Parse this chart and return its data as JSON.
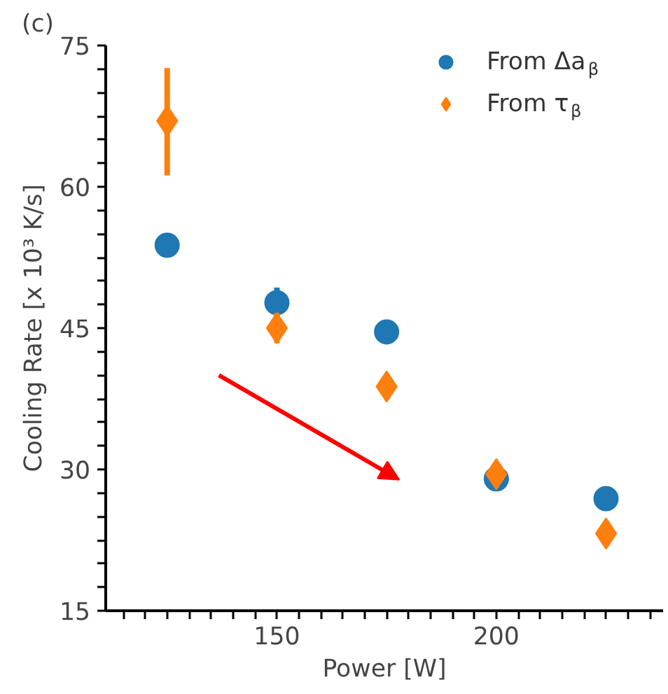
{
  "chart_data": {
    "type": "scatter",
    "title": "(c)",
    "xlabel": "Power [W]",
    "ylabel": "Cooling Rate [x 10³ K/s]",
    "x": [
      125,
      150,
      175,
      200,
      225
    ],
    "series": [
      {
        "name": "From Δa$_{β}$",
        "color": "#1f77b4",
        "marker": "circle",
        "values": [
          53.8,
          47.7,
          44.6,
          29.0,
          26.9
        ],
        "errors": [
          null,
          1.6,
          null,
          null,
          null
        ]
      },
      {
        "name": "From τ$_{β}$",
        "color": "#ff7f0e",
        "marker": "diamond",
        "values": [
          67.0,
          45.0,
          38.8,
          29.5,
          23.2
        ],
        "errors": [
          [
            61.2,
            72.6
          ],
          1.6,
          null,
          null,
          null
        ]
      }
    ],
    "xlim": [
      111,
      238
    ],
    "ylim": [
      15,
      75
    ],
    "xticks": [
      {
        "value": 115,
        "label": null
      },
      {
        "value": 120,
        "label": null
      },
      {
        "value": 125,
        "label": null
      },
      {
        "value": 130,
        "label": null
      },
      {
        "value": 135,
        "label": null
      },
      {
        "value": 140,
        "label": null
      },
      {
        "value": 145,
        "label": null
      },
      150,
      {
        "value": 155,
        "label": null
      },
      {
        "value": 160,
        "label": null
      },
      {
        "value": 165,
        "label": null
      },
      {
        "value": 170,
        "label": null
      },
      {
        "value": 175,
        "label": null
      },
      {
        "value": 180,
        "label": null
      },
      {
        "value": 185,
        "label": null
      },
      {
        "value": 190,
        "label": null
      },
      {
        "value": 195,
        "label": null
      },
      200,
      {
        "value": 205,
        "label": null
      },
      {
        "value": 210,
        "label": null
      },
      {
        "value": 215,
        "label": null
      },
      {
        "value": 220,
        "label": null
      },
      {
        "value": 225,
        "label": null
      },
      {
        "value": 230,
        "label": null
      },
      {
        "value": 235,
        "label": null
      }
    ],
    "yticks": [
      15,
      {
        "value": 17.5,
        "label": null
      },
      {
        "value": 20,
        "label": null
      },
      {
        "value": 22.5,
        "label": null
      },
      {
        "value": 25,
        "label": null
      },
      {
        "value": 27.5,
        "label": null
      },
      30,
      {
        "value": 32.5,
        "label": null
      },
      {
        "value": 35,
        "label": null
      },
      {
        "value": 37.5,
        "label": null
      },
      {
        "value": 40,
        "label": null
      },
      {
        "value": 42.5,
        "label": null
      },
      45,
      {
        "value": 47.5,
        "label": null
      },
      {
        "value": 50,
        "label": null
      },
      {
        "value": 52.5,
        "label": null
      },
      {
        "value": 55,
        "label": null
      },
      {
        "value": 57.5,
        "label": null
      },
      60,
      {
        "value": 62.5,
        "label": null
      },
      {
        "value": 65,
        "label": null
      },
      {
        "value": 67.5,
        "label": null
      },
      {
        "value": 70,
        "label": null
      },
      {
        "value": 72.5,
        "label": null
      },
      75
    ],
    "grid": false,
    "legend": "top right"
  }
}
